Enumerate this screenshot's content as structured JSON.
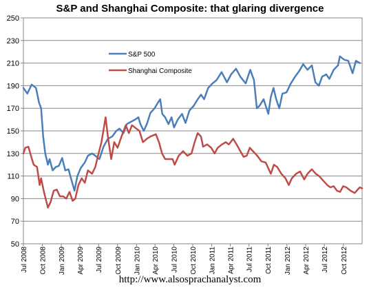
{
  "chart_data": {
    "type": "line",
    "title": "S&P and Shanghai Composite: that glaring divergence",
    "source": "http://www.alsosprachanalyst.com",
    "ylim": [
      50,
      250
    ],
    "yticks": [
      50,
      70,
      90,
      110,
      130,
      150,
      170,
      190,
      210,
      230,
      250
    ],
    "xlim": [
      "2008-07-01",
      "2012-12-31"
    ],
    "xtick_labels": [
      "Jul 2008",
      "Oct 2008",
      "Jan 2009",
      "Apr 2009",
      "Jul 2009",
      "Oct 2009",
      "Jan 2010",
      "Apr 2010",
      "Jul 2010",
      "Oct 2010",
      "Jan 2011",
      "Apr 2011",
      "Jul 2011",
      "Oct 2011",
      "Jan 2012",
      "Apr 2012",
      "Jul 2012",
      "Oct 2012"
    ],
    "xtick_dates": [
      "2008-07-01",
      "2008-10-01",
      "2009-01-01",
      "2009-04-01",
      "2009-07-01",
      "2009-10-01",
      "2010-01-01",
      "2010-04-01",
      "2010-07-01",
      "2010-10-01",
      "2011-01-01",
      "2011-04-01",
      "2011-07-01",
      "2011-10-01",
      "2012-01-01",
      "2012-04-01",
      "2012-07-01",
      "2012-10-01"
    ],
    "grid": "horizontal",
    "legend": "inside-top-left",
    "series": [
      {
        "name": "S&P 500",
        "color": "#4a7ebb",
        "points": [
          [
            "2008-07-01",
            188
          ],
          [
            "2008-07-20",
            183
          ],
          [
            "2008-08-10",
            191
          ],
          [
            "2008-08-31",
            188
          ],
          [
            "2008-09-15",
            175
          ],
          [
            "2008-09-25",
            170
          ],
          [
            "2008-10-05",
            145
          ],
          [
            "2008-10-15",
            130
          ],
          [
            "2008-10-28",
            120
          ],
          [
            "2008-11-05",
            125
          ],
          [
            "2008-11-20",
            115
          ],
          [
            "2008-12-05",
            118
          ],
          [
            "2008-12-20",
            119
          ],
          [
            "2009-01-05",
            126
          ],
          [
            "2009-01-20",
            115
          ],
          [
            "2009-02-05",
            116
          ],
          [
            "2009-02-20",
            106
          ],
          [
            "2009-03-06",
            97
          ],
          [
            "2009-03-20",
            110
          ],
          [
            "2009-04-05",
            117
          ],
          [
            "2009-04-25",
            122
          ],
          [
            "2009-05-10",
            128
          ],
          [
            "2009-05-30",
            130
          ],
          [
            "2009-06-15",
            128
          ],
          [
            "2009-07-05",
            125
          ],
          [
            "2009-07-25",
            136
          ],
          [
            "2009-08-15",
            143
          ],
          [
            "2009-09-05",
            145
          ],
          [
            "2009-09-25",
            150
          ],
          [
            "2009-10-10",
            152
          ],
          [
            "2009-10-30",
            148
          ],
          [
            "2009-11-15",
            156
          ],
          [
            "2009-12-05",
            158
          ],
          [
            "2009-12-25",
            160
          ],
          [
            "2010-01-10",
            162
          ],
          [
            "2010-01-20",
            156
          ],
          [
            "2010-02-05",
            150
          ],
          [
            "2010-02-20",
            156
          ],
          [
            "2010-03-10",
            166
          ],
          [
            "2010-03-30",
            170
          ],
          [
            "2010-04-15",
            175
          ],
          [
            "2010-04-26",
            178
          ],
          [
            "2010-05-06",
            165
          ],
          [
            "2010-05-20",
            162
          ],
          [
            "2010-06-05",
            156
          ],
          [
            "2010-06-20",
            162
          ],
          [
            "2010-07-02",
            153
          ],
          [
            "2010-07-20",
            160
          ],
          [
            "2010-08-10",
            165
          ],
          [
            "2010-08-27",
            157
          ],
          [
            "2010-09-15",
            168
          ],
          [
            "2010-10-05",
            172
          ],
          [
            "2010-10-25",
            178
          ],
          [
            "2010-11-10",
            182
          ],
          [
            "2010-11-25",
            178
          ],
          [
            "2010-12-15",
            188
          ],
          [
            "2011-01-05",
            192
          ],
          [
            "2011-01-25",
            195
          ],
          [
            "2011-02-18",
            202
          ],
          [
            "2011-03-16",
            193
          ],
          [
            "2011-04-05",
            200
          ],
          [
            "2011-04-29",
            205
          ],
          [
            "2011-05-20",
            198
          ],
          [
            "2011-06-15",
            192
          ],
          [
            "2011-07-07",
            204
          ],
          [
            "2011-07-25",
            195
          ],
          [
            "2011-08-08",
            170
          ],
          [
            "2011-08-20",
            172
          ],
          [
            "2011-09-10",
            178
          ],
          [
            "2011-10-03",
            165
          ],
          [
            "2011-10-15",
            180
          ],
          [
            "2011-10-28",
            188
          ],
          [
            "2011-11-10",
            178
          ],
          [
            "2011-11-25",
            170
          ],
          [
            "2011-12-10",
            183
          ],
          [
            "2011-12-30",
            184
          ],
          [
            "2012-01-20",
            192
          ],
          [
            "2012-02-10",
            198
          ],
          [
            "2012-03-01",
            203
          ],
          [
            "2012-03-20",
            209
          ],
          [
            "2012-04-10",
            204
          ],
          [
            "2012-05-01",
            208
          ],
          [
            "2012-05-18",
            193
          ],
          [
            "2012-06-04",
            190
          ],
          [
            "2012-06-20",
            198
          ],
          [
            "2012-07-10",
            200
          ],
          [
            "2012-07-25",
            196
          ],
          [
            "2012-08-15",
            204
          ],
          [
            "2012-09-05",
            208
          ],
          [
            "2012-09-14",
            216
          ],
          [
            "2012-10-05",
            213
          ],
          [
            "2012-10-25",
            212
          ],
          [
            "2012-11-15",
            201
          ],
          [
            "2012-12-01",
            212
          ],
          [
            "2012-12-20",
            210
          ]
        ]
      },
      {
        "name": "Shanghai Composite",
        "color": "#be4b48",
        "points": [
          [
            "2008-07-01",
            130
          ],
          [
            "2008-07-10",
            135
          ],
          [
            "2008-07-25",
            136
          ],
          [
            "2008-08-08",
            127
          ],
          [
            "2008-08-20",
            120
          ],
          [
            "2008-09-05",
            118
          ],
          [
            "2008-09-18",
            102
          ],
          [
            "2008-09-25",
            108
          ],
          [
            "2008-10-10",
            95
          ],
          [
            "2008-10-28",
            82
          ],
          [
            "2008-11-10",
            87
          ],
          [
            "2008-11-25",
            97
          ],
          [
            "2008-12-10",
            98
          ],
          [
            "2008-12-25",
            92
          ],
          [
            "2009-01-10",
            92
          ],
          [
            "2009-01-25",
            90
          ],
          [
            "2009-02-10",
            96
          ],
          [
            "2009-02-25",
            88
          ],
          [
            "2009-03-10",
            90
          ],
          [
            "2009-03-25",
            102
          ],
          [
            "2009-04-10",
            108
          ],
          [
            "2009-04-25",
            104
          ],
          [
            "2009-05-10",
            115
          ],
          [
            "2009-05-30",
            112
          ],
          [
            "2009-06-15",
            118
          ],
          [
            "2009-07-01",
            130
          ],
          [
            "2009-07-15",
            140
          ],
          [
            "2009-08-04",
            162
          ],
          [
            "2009-08-15",
            145
          ],
          [
            "2009-08-31",
            125
          ],
          [
            "2009-09-15",
            140
          ],
          [
            "2009-10-01",
            135
          ],
          [
            "2009-10-20",
            145
          ],
          [
            "2009-11-10",
            155
          ],
          [
            "2009-11-25",
            148
          ],
          [
            "2009-12-10",
            155
          ],
          [
            "2009-12-31",
            152
          ],
          [
            "2010-01-15",
            150
          ],
          [
            "2010-02-01",
            140
          ],
          [
            "2010-02-20",
            143
          ],
          [
            "2010-03-10",
            145
          ],
          [
            "2010-04-05",
            147
          ],
          [
            "2010-04-20",
            140
          ],
          [
            "2010-05-05",
            130
          ],
          [
            "2010-05-20",
            125
          ],
          [
            "2010-06-05",
            125
          ],
          [
            "2010-06-25",
            125
          ],
          [
            "2010-07-05",
            120
          ],
          [
            "2010-07-25",
            128
          ],
          [
            "2010-08-15",
            132
          ],
          [
            "2010-09-05",
            128
          ],
          [
            "2010-09-25",
            130
          ],
          [
            "2010-10-10",
            140
          ],
          [
            "2010-10-25",
            148
          ],
          [
            "2010-11-10",
            145
          ],
          [
            "2010-11-20",
            136
          ],
          [
            "2010-12-10",
            138
          ],
          [
            "2010-12-30",
            135
          ],
          [
            "2011-01-15",
            130
          ],
          [
            "2011-01-30",
            135
          ],
          [
            "2011-02-20",
            138
          ],
          [
            "2011-03-10",
            140
          ],
          [
            "2011-03-25",
            138
          ],
          [
            "2011-04-15",
            143
          ],
          [
            "2011-05-05",
            137
          ],
          [
            "2011-05-20",
            132
          ],
          [
            "2011-06-05",
            127
          ],
          [
            "2011-06-20",
            128
          ],
          [
            "2011-07-05",
            135
          ],
          [
            "2011-07-20",
            132
          ],
          [
            "2011-08-10",
            128
          ],
          [
            "2011-08-30",
            123
          ],
          [
            "2011-09-20",
            122
          ],
          [
            "2011-10-15",
            112
          ],
          [
            "2011-10-30",
            120
          ],
          [
            "2011-11-15",
            118
          ],
          [
            "2011-12-05",
            112
          ],
          [
            "2011-12-25",
            108
          ],
          [
            "2012-01-10",
            102
          ],
          [
            "2012-01-25",
            108
          ],
          [
            "2012-02-15",
            112
          ],
          [
            "2012-03-05",
            114
          ],
          [
            "2012-03-25",
            107
          ],
          [
            "2012-04-10",
            112
          ],
          [
            "2012-05-01",
            116
          ],
          [
            "2012-05-20",
            112
          ],
          [
            "2012-06-05",
            110
          ],
          [
            "2012-06-25",
            106
          ],
          [
            "2012-07-15",
            102
          ],
          [
            "2012-07-30",
            100
          ],
          [
            "2012-08-15",
            101
          ],
          [
            "2012-08-31",
            97
          ],
          [
            "2012-09-15",
            96
          ],
          [
            "2012-09-30",
            101
          ],
          [
            "2012-10-15",
            100
          ],
          [
            "2012-11-05",
            97
          ],
          [
            "2012-11-25",
            95
          ],
          [
            "2012-12-05",
            97
          ],
          [
            "2012-12-20",
            100
          ],
          [
            "2012-12-31",
            99
          ]
        ]
      }
    ]
  }
}
